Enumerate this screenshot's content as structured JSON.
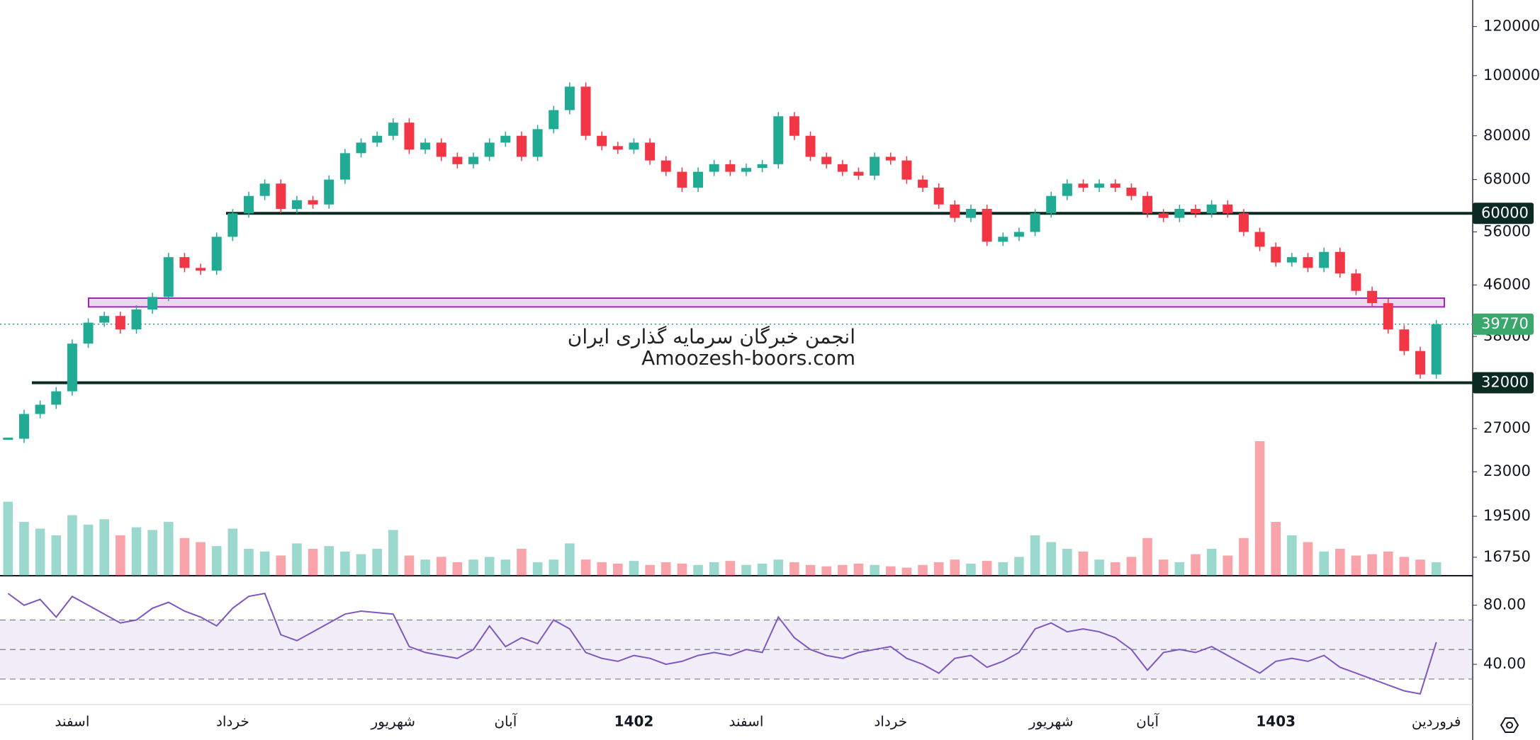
{
  "chart_data": {
    "type": "candlestick",
    "up_color": "#22ab94",
    "down_color": "#f23645",
    "ylim": [
      15640,
      132400
    ],
    "log_scale": true,
    "grid": false,
    "yticks": [
      120000,
      100000,
      80000,
      68000,
      56000,
      46000,
      38000,
      27000,
      23000,
      19500,
      16750
    ],
    "categories": [
      null,
      null,
      null,
      null,
      "اسفند",
      null,
      null,
      null,
      null,
      null,
      null,
      null,
      null,
      null,
      "خرداد",
      null,
      null,
      null,
      null,
      null,
      null,
      null,
      null,
      null,
      "شهریور",
      null,
      null,
      null,
      null,
      null,
      null,
      "آبان",
      null,
      null,
      null,
      null,
      null,
      null,
      null,
      "1402",
      null,
      null,
      null,
      null,
      null,
      null,
      "اسفند",
      null,
      null,
      null,
      null,
      null,
      null,
      null,
      null,
      "خرداد",
      null,
      null,
      null,
      null,
      null,
      null,
      null,
      null,
      null,
      "شهریور",
      null,
      null,
      null,
      null,
      null,
      "آبان",
      null,
      null,
      null,
      null,
      null,
      null,
      null,
      "1403",
      null,
      null,
      null,
      null,
      null,
      null,
      null,
      null,
      null,
      "فروردین"
    ],
    "close": [
      26000,
      28500,
      29500,
      31000,
      37000,
      40000,
      41000,
      39000,
      42000,
      44000,
      51000,
      49000,
      48500,
      55000,
      60000,
      64000,
      67000,
      61000,
      63000,
      62000,
      68000,
      75000,
      78000,
      80000,
      84000,
      76000,
      78000,
      74000,
      72000,
      74000,
      78000,
      80000,
      74000,
      82000,
      88000,
      96000,
      80000,
      77000,
      76000,
      78000,
      73000,
      70000,
      66000,
      70000,
      72000,
      70000,
      71000,
      72000,
      86000,
      80000,
      74000,
      72000,
      70000,
      69000,
      74000,
      73000,
      68000,
      66000,
      62000,
      59000,
      61000,
      54000,
      55000,
      56000,
      60000,
      64000,
      67000,
      66000,
      67000,
      66000,
      64000,
      60000,
      59000,
      61000,
      60000,
      62000,
      60000,
      56000,
      53000,
      50000,
      51000,
      49000,
      52000,
      48000,
      45000,
      43000,
      39000,
      36000,
      33000,
      39770
    ],
    "volume_ylim": [
      0,
      100
    ],
    "volume": [
      55,
      40,
      35,
      30,
      45,
      38,
      42,
      30,
      36,
      34,
      40,
      28,
      25,
      22,
      35,
      20,
      18,
      15,
      24,
      20,
      22,
      18,
      16,
      20,
      34,
      15,
      12,
      14,
      10,
      12,
      14,
      12,
      20,
      10,
      12,
      24,
      12,
      10,
      9,
      11,
      8,
      10,
      9,
      8,
      10,
      11,
      8,
      9,
      12,
      10,
      8,
      7,
      8,
      9,
      8,
      7,
      6,
      8,
      10,
      12,
      9,
      11,
      10,
      14,
      30,
      25,
      20,
      18,
      12,
      10,
      14,
      28,
      12,
      10,
      16,
      20,
      15,
      28,
      100,
      40,
      30,
      25,
      18,
      20,
      15,
      16,
      18,
      14,
      12,
      10
    ],
    "levels": [
      60000,
      32000
    ],
    "zone": [
      42400,
      43800
    ],
    "last_price": 39770,
    "watermark": [
      "انجمن خبرگان سرمایه گذاری ایران",
      "Amoozesh-boors.com"
    ],
    "rsi": {
      "color": "#7e57c2",
      "ylim": [
        12.7,
        100
      ],
      "yticks": [
        {
          "value": 80,
          "label": "80.00"
        },
        {
          "value": 40,
          "label": "40.00"
        }
      ],
      "band": [
        30,
        70
      ],
      "levels": [
        70,
        50,
        30
      ],
      "values": [
        88,
        80,
        84,
        72,
        86,
        80,
        74,
        68,
        70,
        78,
        82,
        76,
        72,
        66,
        78,
        86,
        88,
        60,
        56,
        62,
        68,
        74,
        76,
        75,
        74,
        52,
        48,
        46,
        44,
        50,
        66,
        52,
        58,
        54,
        70,
        64,
        48,
        44,
        42,
        46,
        44,
        40,
        42,
        46,
        48,
        46,
        50,
        48,
        72,
        58,
        50,
        46,
        44,
        48,
        50,
        52,
        44,
        40,
        34,
        44,
        46,
        38,
        42,
        48,
        64,
        68,
        62,
        64,
        62,
        58,
        50,
        36,
        48,
        50,
        48,
        52,
        46,
        40,
        34,
        42,
        44,
        42,
        46,
        38,
        34,
        30,
        26,
        22,
        20,
        55
      ]
    }
  }
}
